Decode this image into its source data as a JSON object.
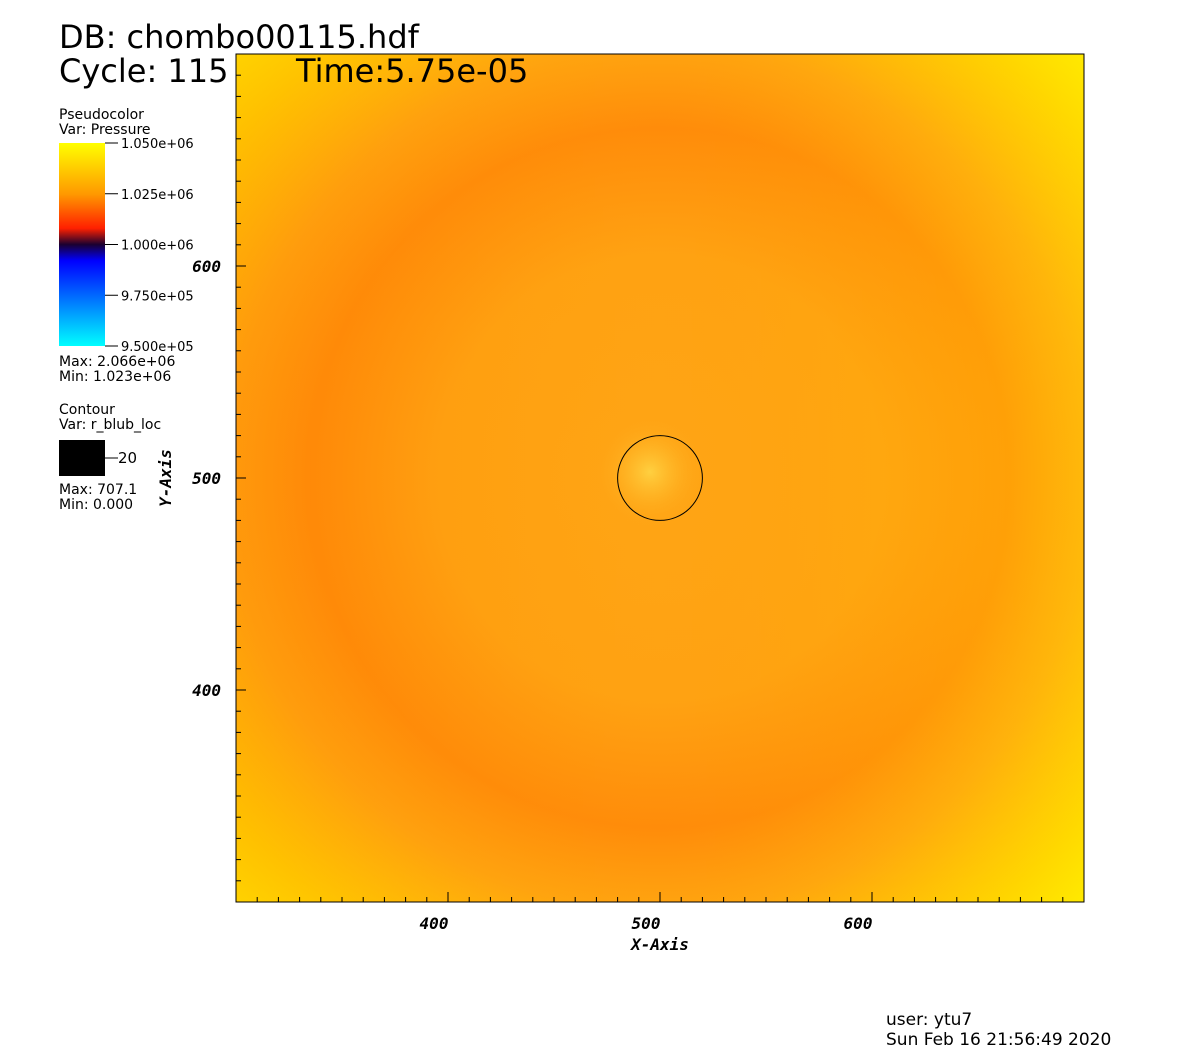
{
  "chart_data": {
    "type": "pseudocolor",
    "title": "DB: chombo00115.hdf",
    "cycle": "Cycle: 115",
    "time": "Time:5.75e-05",
    "x_label": "X-Axis",
    "y_label": "Y-Axis",
    "xlim": [
      300,
      700
    ],
    "ylim": [
      300,
      700
    ],
    "xticks": [
      400,
      500,
      600
    ],
    "yticks": [
      400,
      500,
      600
    ],
    "xminorticks": [
      310,
      320,
      330,
      340,
      350,
      360,
      370,
      380,
      390,
      410,
      420,
      430,
      440,
      450,
      460,
      470,
      480,
      490,
      510,
      520,
      530,
      540,
      550,
      560,
      570,
      580,
      590,
      610,
      620,
      630,
      640,
      650,
      660,
      670,
      680,
      690
    ],
    "yminorticks": [
      310,
      320,
      330,
      340,
      350,
      360,
      370,
      380,
      390,
      410,
      420,
      430,
      440,
      450,
      460,
      470,
      480,
      490,
      510,
      520,
      530,
      540,
      550,
      560,
      570,
      580,
      590,
      610,
      620,
      630,
      640,
      650,
      660,
      670,
      680,
      690
    ],
    "pseudocolor": {
      "title": "Pseudocolor",
      "var": "Var: Pressure",
      "range": [
        950000,
        1050000
      ],
      "ticks": [
        {
          "value": 1050000,
          "label": "1.050e+06"
        },
        {
          "value": 1025000,
          "label": "1.025e+06"
        },
        {
          "value": 1000000,
          "label": "1.000e+06"
        },
        {
          "value": 975000,
          "label": "9.750e+05"
        },
        {
          "value": 950000,
          "label": "9.500e+05"
        }
      ],
      "max": "Max: 2.066e+06",
      "min": "Min:  1.023e+06"
    },
    "contour": {
      "title": "Contour",
      "var": "Var: r_blub_loc",
      "levels": [
        20
      ],
      "color": "#000000",
      "max": "Max: 707.1",
      "min": "Min: 0.000"
    },
    "user": "user: ytu7",
    "date": "Sun Feb 16 21:56:49 2020"
  }
}
